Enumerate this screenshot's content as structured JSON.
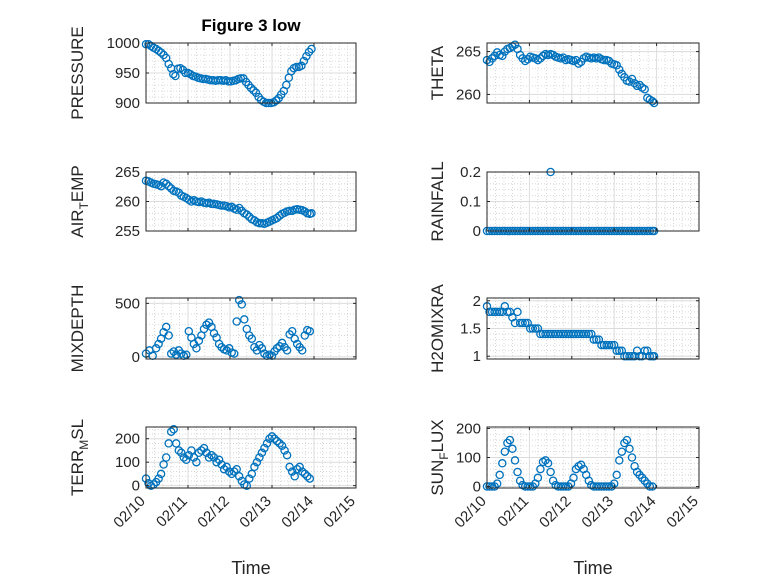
{
  "figure": {
    "title": "Figure 3 low",
    "xlabel": "Time",
    "marker_color": "#0072bd"
  },
  "chart_data": [
    {
      "type": "scatter",
      "ylabel": "PRESSURE",
      "ylabel_parts": [
        {
          "text": "PRESSURE"
        }
      ],
      "ylim": [
        900,
        1000
      ],
      "yticks": [
        900,
        950,
        1000
      ],
      "x_tick_labels": [],
      "x": [
        0.0,
        0.06,
        0.12,
        0.18,
        0.24,
        0.3,
        0.36,
        0.42,
        0.48,
        0.54,
        0.6,
        0.65,
        0.7,
        0.76,
        0.82,
        0.88,
        0.94,
        1.0,
        1.06,
        1.12,
        1.18,
        1.24,
        1.3,
        1.36,
        1.42,
        1.48,
        1.54,
        1.6,
        1.66,
        1.72,
        1.78,
        1.84,
        1.9,
        1.96,
        2.02,
        2.08,
        2.14,
        2.2,
        2.26,
        2.32,
        2.38,
        2.44,
        2.5,
        2.56,
        2.62,
        2.68,
        2.74,
        2.8,
        2.86,
        2.92,
        2.98,
        3.04,
        3.1,
        3.16,
        3.22,
        3.28,
        3.34,
        3.4,
        3.46,
        3.52,
        3.58,
        3.64,
        3.7,
        3.76,
        3.82,
        3.88,
        3.94
      ],
      "values": [
        998,
        998,
        995,
        992,
        990,
        987,
        984,
        980,
        975,
        965,
        958,
        948,
        945,
        957,
        958,
        955,
        950,
        950,
        948,
        945,
        944,
        942,
        941,
        940,
        940,
        939,
        938,
        938,
        937,
        938,
        938,
        937,
        938,
        936,
        936,
        937,
        938,
        940,
        941,
        941,
        935,
        930,
        925,
        921,
        917,
        910,
        905,
        902,
        900,
        900,
        900,
        901,
        904,
        908,
        914,
        920,
        930,
        942,
        953,
        958,
        960,
        960,
        962,
        970,
        978,
        985,
        990
      ]
    },
    {
      "type": "scatter",
      "ylabel": "THETA",
      "ylabel_parts": [
        {
          "text": "THETA"
        }
      ],
      "ylim": [
        259,
        266
      ],
      "yticks": [
        260,
        265
      ],
      "x_tick_labels": [],
      "x": [
        0.0,
        0.06,
        0.12,
        0.18,
        0.24,
        0.3,
        0.36,
        0.42,
        0.48,
        0.54,
        0.6,
        0.66,
        0.72,
        0.78,
        0.84,
        0.9,
        0.96,
        1.02,
        1.08,
        1.14,
        1.2,
        1.26,
        1.32,
        1.38,
        1.44,
        1.5,
        1.56,
        1.62,
        1.68,
        1.74,
        1.8,
        1.86,
        1.92,
        1.98,
        2.04,
        2.1,
        2.16,
        2.22,
        2.28,
        2.34,
        2.4,
        2.46,
        2.52,
        2.58,
        2.64,
        2.7,
        2.76,
        2.82,
        2.88,
        2.94,
        3.0,
        3.06,
        3.12,
        3.18,
        3.24,
        3.3,
        3.36,
        3.42,
        3.48,
        3.54,
        3.6,
        3.66,
        3.72,
        3.78,
        3.84,
        3.9,
        3.94
      ],
      "values": [
        264.0,
        263.8,
        264.2,
        264.5,
        264.9,
        264.6,
        264.5,
        265.0,
        265.3,
        265.4,
        265.6,
        265.8,
        265.3,
        264.6,
        264.2,
        263.9,
        264.1,
        264.4,
        264.3,
        264.2,
        264.0,
        264.2,
        264.5,
        264.7,
        264.6,
        264.7,
        264.6,
        264.4,
        264.3,
        264.2,
        264.3,
        264.0,
        264.1,
        264.0,
        263.9,
        264.0,
        263.6,
        263.8,
        264.2,
        264.4,
        264.3,
        264.2,
        264.3,
        264.2,
        264.3,
        264.1,
        264.0,
        264.0,
        263.9,
        263.6,
        263.5,
        263.4,
        262.9,
        262.4,
        262.0,
        261.6,
        261.5,
        261.8,
        261.3,
        261.0,
        261.1,
        260.8,
        260.6,
        259.6,
        259.4,
        259.2,
        259.0
      ]
    },
    {
      "type": "scatter",
      "ylabel": "AIR_TEMP",
      "ylabel_parts": [
        {
          "text": "AIR"
        },
        {
          "text": "T",
          "sub": true
        },
        {
          "text": "EMP"
        }
      ],
      "ylim": [
        255,
        265
      ],
      "yticks": [
        255,
        260,
        265
      ],
      "x_tick_labels": [],
      "x": [
        0.0,
        0.06,
        0.12,
        0.18,
        0.24,
        0.3,
        0.36,
        0.42,
        0.48,
        0.54,
        0.6,
        0.66,
        0.72,
        0.78,
        0.84,
        0.9,
        0.96,
        1.02,
        1.08,
        1.14,
        1.2,
        1.26,
        1.32,
        1.38,
        1.44,
        1.5,
        1.56,
        1.62,
        1.68,
        1.74,
        1.8,
        1.86,
        1.92,
        1.98,
        2.04,
        2.1,
        2.16,
        2.22,
        2.28,
        2.34,
        2.4,
        2.46,
        2.52,
        2.58,
        2.64,
        2.7,
        2.76,
        2.82,
        2.88,
        2.94,
        3.0,
        3.06,
        3.12,
        3.18,
        3.24,
        3.3,
        3.36,
        3.42,
        3.48,
        3.54,
        3.6,
        3.66,
        3.72,
        3.78,
        3.84,
        3.9,
        3.94
      ],
      "values": [
        263.5,
        263.4,
        263.2,
        263.0,
        262.9,
        262.8,
        262.6,
        263.2,
        263.0,
        262.6,
        262.2,
        261.8,
        261.7,
        261.5,
        261.0,
        260.8,
        260.6,
        260.3,
        260.0,
        260.2,
        260.0,
        259.9,
        260.0,
        259.8,
        259.7,
        259.8,
        259.6,
        259.6,
        259.5,
        259.4,
        259.3,
        259.3,
        259.2,
        259.0,
        259.1,
        258.8,
        258.6,
        258.9,
        258.4,
        258.0,
        257.8,
        257.4,
        257.0,
        256.8,
        256.5,
        256.3,
        256.3,
        256.2,
        256.4,
        256.6,
        256.8,
        257.0,
        257.2,
        257.6,
        257.9,
        258.1,
        258.3,
        258.4,
        258.4,
        258.6,
        258.7,
        258.6,
        258.5,
        258.3,
        258.0,
        257.9,
        258.0
      ]
    },
    {
      "type": "scatter",
      "ylabel": "RAINFALL",
      "ylabel_parts": [
        {
          "text": "RAINFALL"
        }
      ],
      "ylim": [
        0,
        0.2
      ],
      "yticks": [
        0,
        0.1,
        0.2
      ],
      "x_tick_labels": [],
      "x": [
        0.0,
        0.06,
        0.12,
        0.18,
        0.24,
        0.3,
        0.36,
        0.42,
        0.48,
        0.54,
        0.6,
        0.66,
        0.72,
        0.78,
        0.84,
        0.9,
        0.96,
        1.02,
        1.08,
        1.14,
        1.2,
        1.26,
        1.32,
        1.38,
        1.44,
        1.5,
        1.56,
        1.62,
        1.68,
        1.74,
        1.8,
        1.86,
        1.92,
        1.98,
        2.04,
        2.1,
        2.16,
        2.22,
        2.28,
        2.34,
        2.4,
        2.46,
        2.52,
        2.58,
        2.64,
        2.7,
        2.76,
        2.82,
        2.88,
        2.94,
        3.0,
        3.06,
        3.12,
        3.18,
        3.24,
        3.3,
        3.36,
        3.42,
        3.48,
        3.54,
        3.6,
        3.66,
        3.72,
        3.78,
        3.84,
        3.9,
        3.94,
        1.5
      ],
      "values": [
        0,
        0,
        0,
        0,
        0,
        0,
        0,
        0,
        0,
        0,
        0,
        0,
        0,
        0,
        0,
        0,
        0,
        0,
        0,
        0,
        0,
        0,
        0,
        0,
        0,
        0,
        0,
        0,
        0,
        0,
        0,
        0,
        0,
        0,
        0,
        0,
        0,
        0,
        0,
        0,
        0,
        0,
        0,
        0,
        0,
        0,
        0,
        0,
        0,
        0,
        0,
        0,
        0,
        0,
        0,
        0,
        0,
        0,
        0,
        0,
        0,
        0,
        0,
        0,
        0,
        0,
        0,
        0.2
      ]
    },
    {
      "type": "scatter",
      "ylabel": "MIXDEPTH",
      "ylabel_parts": [
        {
          "text": "MIXDEPTH"
        }
      ],
      "ylim": [
        -20,
        550
      ],
      "yticks": [
        0,
        500
      ],
      "x_tick_labels": [],
      "x": [
        0.0,
        0.08,
        0.16,
        0.24,
        0.3,
        0.36,
        0.42,
        0.48,
        0.54,
        0.6,
        0.66,
        0.72,
        0.78,
        0.84,
        0.9,
        0.96,
        1.02,
        1.08,
        1.14,
        1.2,
        1.26,
        1.32,
        1.38,
        1.44,
        1.5,
        1.56,
        1.62,
        1.68,
        1.74,
        1.8,
        1.86,
        1.92,
        1.98,
        2.04,
        2.1,
        2.16,
        2.22,
        2.28,
        2.34,
        2.4,
        2.46,
        2.52,
        2.58,
        2.64,
        2.7,
        2.76,
        2.82,
        2.88,
        2.94,
        3.0,
        3.06,
        3.12,
        3.18,
        3.24,
        3.3,
        3.36,
        3.42,
        3.48,
        3.54,
        3.6,
        3.66,
        3.72,
        3.78,
        3.84,
        3.9
      ],
      "values": [
        30,
        60,
        10,
        80,
        120,
        170,
        230,
        280,
        200,
        30,
        50,
        20,
        60,
        30,
        10,
        20,
        240,
        180,
        120,
        80,
        150,
        200,
        260,
        300,
        320,
        280,
        220,
        180,
        120,
        90,
        70,
        60,
        80,
        40,
        30,
        330,
        530,
        490,
        350,
        260,
        200,
        170,
        90,
        60,
        110,
        80,
        30,
        10,
        20,
        10,
        50,
        80,
        100,
        130,
        90,
        60,
        210,
        240,
        170,
        120,
        90,
        60,
        200,
        250,
        240
      ]
    },
    {
      "type": "scatter",
      "ylabel": "H2OMIXRA",
      "ylabel_parts": [
        {
          "text": "H2OMIXRA"
        }
      ],
      "ylim": [
        0.95,
        2.05
      ],
      "yticks": [
        1,
        1.5,
        2
      ],
      "x_tick_labels": [],
      "x": [
        0.0,
        0.06,
        0.12,
        0.18,
        0.24,
        0.3,
        0.36,
        0.42,
        0.48,
        0.54,
        0.6,
        0.66,
        0.72,
        0.78,
        0.84,
        0.9,
        0.96,
        1.02,
        1.08,
        1.14,
        1.2,
        1.26,
        1.32,
        1.38,
        1.44,
        1.5,
        1.56,
        1.62,
        1.68,
        1.74,
        1.8,
        1.86,
        1.92,
        1.98,
        2.04,
        2.1,
        2.16,
        2.22,
        2.28,
        2.34,
        2.4,
        2.46,
        2.52,
        2.58,
        2.64,
        2.7,
        2.76,
        2.82,
        2.88,
        2.94,
        3.0,
        3.06,
        3.12,
        3.18,
        3.24,
        3.3,
        3.36,
        3.42,
        3.48,
        3.54,
        3.6,
        3.66,
        3.72,
        3.78,
        3.84,
        3.9,
        3.94
      ],
      "values": [
        1.9,
        1.8,
        1.8,
        1.8,
        1.8,
        1.8,
        1.8,
        1.9,
        1.8,
        1.8,
        1.7,
        1.6,
        1.8,
        1.6,
        1.6,
        1.6,
        1.6,
        1.5,
        1.5,
        1.5,
        1.5,
        1.4,
        1.4,
        1.4,
        1.4,
        1.4,
        1.4,
        1.4,
        1.4,
        1.4,
        1.4,
        1.4,
        1.4,
        1.4,
        1.4,
        1.4,
        1.4,
        1.4,
        1.4,
        1.4,
        1.4,
        1.4,
        1.3,
        1.3,
        1.3,
        1.2,
        1.2,
        1.2,
        1.2,
        1.2,
        1.2,
        1.1,
        1.1,
        1.1,
        1.0,
        1.0,
        1.0,
        1.0,
        1.0,
        1.1,
        1.0,
        1.0,
        1.1,
        1.1,
        1.0,
        1.0,
        1.0
      ]
    },
    {
      "type": "scatter",
      "ylabel": "TERR_MSL",
      "ylabel_parts": [
        {
          "text": "TERR"
        },
        {
          "text": "M",
          "sub": true
        },
        {
          "text": "SL"
        }
      ],
      "ylim": [
        -10,
        250
      ],
      "yticks": [
        0,
        100,
        200
      ],
      "x_tick_labels": [
        "02/10",
        "02/11",
        "02/12",
        "02/13",
        "02/14",
        "02/15"
      ],
      "x": [
        0.0,
        0.06,
        0.12,
        0.18,
        0.24,
        0.3,
        0.36,
        0.42,
        0.48,
        0.54,
        0.6,
        0.66,
        0.72,
        0.78,
        0.84,
        0.9,
        0.96,
        1.02,
        1.08,
        1.14,
        1.2,
        1.26,
        1.32,
        1.38,
        1.44,
        1.5,
        1.56,
        1.62,
        1.68,
        1.74,
        1.8,
        1.86,
        1.92,
        1.98,
        2.04,
        2.1,
        2.16,
        2.22,
        2.28,
        2.34,
        2.4,
        2.46,
        2.52,
        2.58,
        2.64,
        2.7,
        2.76,
        2.82,
        2.88,
        2.94,
        3.0,
        3.06,
        3.12,
        3.18,
        3.24,
        3.3,
        3.36,
        3.42,
        3.48,
        3.54,
        3.6,
        3.66,
        3.72,
        3.78,
        3.84,
        3.9
      ],
      "values": [
        30,
        10,
        0,
        5,
        15,
        30,
        50,
        90,
        120,
        180,
        230,
        240,
        180,
        150,
        140,
        120,
        110,
        130,
        150,
        120,
        100,
        140,
        150,
        160,
        140,
        120,
        130,
        120,
        100,
        110,
        90,
        70,
        80,
        60,
        50,
        60,
        70,
        40,
        20,
        5,
        0,
        30,
        50,
        80,
        100,
        120,
        140,
        160,
        180,
        200,
        210,
        200,
        190,
        180,
        170,
        150,
        130,
        80,
        60,
        40,
        70,
        80,
        60,
        50,
        40,
        30
      ]
    },
    {
      "type": "scatter",
      "ylabel": "SUN_FLUX",
      "ylabel_parts": [
        {
          "text": "SUN"
        },
        {
          "text": "F",
          "sub": true
        },
        {
          "text": "LUX"
        }
      ],
      "ylim": [
        -5,
        205
      ],
      "yticks": [
        0,
        100,
        200
      ],
      "x_tick_labels": [
        "02/10",
        "02/11",
        "02/12",
        "02/13",
        "02/14",
        "02/15"
      ],
      "x": [
        0.0,
        0.06,
        0.12,
        0.18,
        0.24,
        0.3,
        0.36,
        0.42,
        0.48,
        0.54,
        0.6,
        0.66,
        0.72,
        0.78,
        0.84,
        0.9,
        0.96,
        1.02,
        1.08,
        1.14,
        1.2,
        1.26,
        1.32,
        1.38,
        1.44,
        1.5,
        1.56,
        1.62,
        1.68,
        1.74,
        1.8,
        1.86,
        1.92,
        1.98,
        2.04,
        2.1,
        2.16,
        2.22,
        2.28,
        2.34,
        2.4,
        2.46,
        2.52,
        2.58,
        2.64,
        2.7,
        2.76,
        2.82,
        2.88,
        2.94,
        3.0,
        3.06,
        3.12,
        3.18,
        3.24,
        3.3,
        3.36,
        3.42,
        3.48,
        3.54,
        3.6,
        3.66,
        3.72,
        3.78,
        3.84,
        3.9
      ],
      "values": [
        0,
        0,
        0,
        0,
        10,
        40,
        80,
        120,
        150,
        160,
        130,
        90,
        50,
        20,
        5,
        0,
        0,
        0,
        0,
        10,
        30,
        60,
        85,
        90,
        80,
        50,
        20,
        5,
        0,
        0,
        0,
        0,
        0,
        10,
        30,
        60,
        70,
        75,
        60,
        40,
        20,
        5,
        0,
        0,
        0,
        0,
        0,
        0,
        0,
        0,
        10,
        40,
        90,
        120,
        150,
        160,
        130,
        100,
        70,
        50,
        40,
        30,
        20,
        10,
        0,
        0
      ]
    }
  ]
}
